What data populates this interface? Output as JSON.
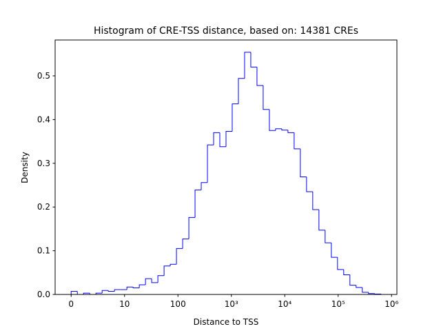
{
  "chart_data": {
    "type": "histogram",
    "title": "Histogram of CRE-TSS distance, based on: 14381 CREs",
    "x_label": "Distance to TSS",
    "y_label": "Density",
    "color": "#0000ff",
    "bins": [
      0,
      0.116,
      0.232,
      0.348,
      0.464,
      0.58,
      0.696,
      0.812,
      0.928,
      1.044,
      1.16,
      1.276,
      1.392,
      1.508,
      1.624,
      1.74,
      1.856,
      1.972,
      2.088,
      2.204,
      2.32,
      2.436,
      2.552,
      2.668,
      2.784,
      2.9,
      3.016,
      3.132,
      3.248,
      3.364,
      3.48,
      3.596,
      3.712,
      3.828,
      3.944,
      4.06,
      4.176,
      4.292,
      4.408,
      4.524,
      4.64,
      4.756,
      4.872,
      4.988,
      5.104,
      5.22,
      5.336,
      5.452,
      5.568,
      5.684,
      5.8
    ],
    "values": [
      0.007,
      0,
      0.003,
      0,
      0.003,
      0.009,
      0.007,
      0.011,
      0.011,
      0.017,
      0.015,
      0.022,
      0.036,
      0.027,
      0.043,
      0.065,
      0.069,
      0.105,
      0.127,
      0.176,
      0.239,
      0.256,
      0.342,
      0.37,
      0.338,
      0.373,
      0.436,
      0.494,
      0.554,
      0.52,
      0.478,
      0.423,
      0.375,
      0.379,
      0.376,
      0.37,
      0.333,
      0.269,
      0.235,
      0.194,
      0.147,
      0.118,
      0.085,
      0.057,
      0.045,
      0.021,
      0.016,
      0.005,
      0.002,
      0.001
    ],
    "xlim": [
      -0.3,
      6.1
    ],
    "xticks": [
      0,
      {
        "value": 1,
        "label": "10"
      },
      {
        "value": 2,
        "label": "100"
      },
      {
        "value": 3,
        "label": "10³"
      },
      {
        "value": 4,
        "label": "10⁴"
      },
      {
        "value": 5,
        "label": "10⁵"
      },
      {
        "value": 6,
        "label": "10⁶"
      }
    ],
    "ylim": [
      0,
      0.582
    ],
    "yticks": [
      {
        "value": 0,
        "label": "0.0"
      },
      0.1,
      0.2,
      0.3,
      0.4,
      0.5
    ],
    "grid": false
  }
}
